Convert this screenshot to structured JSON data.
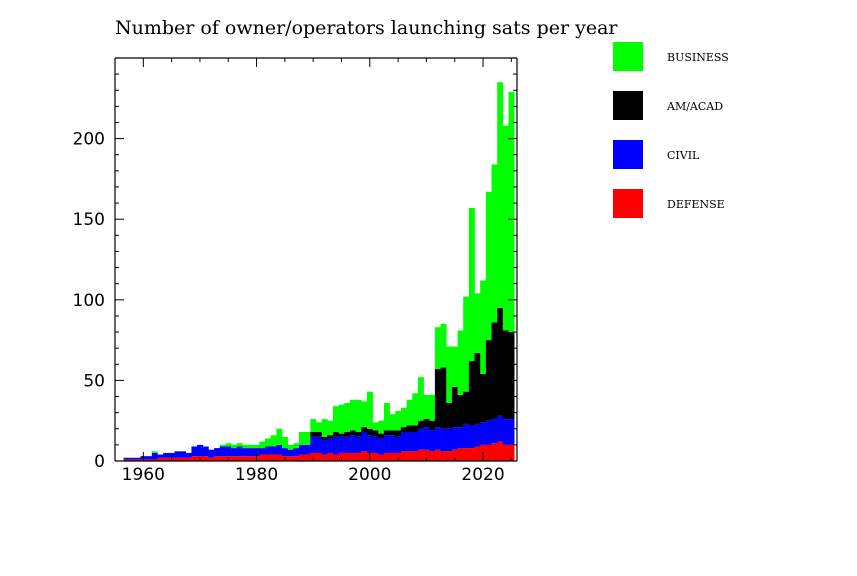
{
  "chart_data": {
    "type": "bar",
    "stacked": true,
    "title": "Number of owner/operators launching sats per year",
    "xlabel": "",
    "ylabel": "",
    "xlim": [
      1955,
      2026
    ],
    "ylim": [
      0,
      250
    ],
    "x_ticks": [
      1960,
      1980,
      2000,
      2020
    ],
    "y_ticks": [
      0,
      50,
      100,
      150,
      200
    ],
    "grid": false,
    "legend_position": "right",
    "x": [
      1957,
      1958,
      1959,
      1960,
      1961,
      1962,
      1963,
      1964,
      1965,
      1966,
      1967,
      1968,
      1969,
      1970,
      1971,
      1972,
      1973,
      1974,
      1975,
      1976,
      1977,
      1978,
      1979,
      1980,
      1981,
      1982,
      1983,
      1984,
      1985,
      1986,
      1987,
      1988,
      1989,
      1990,
      1991,
      1992,
      1993,
      1994,
      1995,
      1996,
      1997,
      1998,
      1999,
      2000,
      2001,
      2002,
      2003,
      2004,
      2005,
      2006,
      2007,
      2008,
      2009,
      2010,
      2011,
      2012,
      2013,
      2014,
      2015,
      2016,
      2017,
      2018,
      2019,
      2020,
      2021,
      2022,
      2023,
      2024,
      2025
    ],
    "series": [
      {
        "name": "DEFENSE",
        "color": "#ff0000",
        "values": [
          1,
          1,
          1,
          1,
          1,
          1,
          2,
          2,
          2,
          2,
          2,
          2,
          3,
          3,
          3,
          2,
          3,
          3,
          3,
          3,
          3,
          3,
          3,
          3,
          4,
          4,
          4,
          4,
          3,
          3,
          3,
          4,
          4,
          5,
          5,
          4,
          5,
          4,
          5,
          5,
          5,
          5,
          6,
          5,
          5,
          4,
          5,
          5,
          5,
          6,
          6,
          6,
          7,
          7,
          6,
          7,
          6,
          6,
          7,
          8,
          8,
          8,
          9,
          10,
          10,
          11,
          12,
          10,
          10
        ]
      },
      {
        "name": "CIVIL",
        "color": "#0000ff",
        "values": [
          1,
          1,
          1,
          2,
          2,
          4,
          2,
          3,
          3,
          4,
          4,
          3,
          6,
          7,
          6,
          5,
          5,
          6,
          6,
          5,
          6,
          5,
          5,
          5,
          4,
          5,
          5,
          6,
          5,
          4,
          5,
          6,
          6,
          10,
          10,
          9,
          9,
          11,
          10,
          10,
          11,
          10,
          12,
          11,
          10,
          10,
          11,
          11,
          10,
          12,
          12,
          12,
          13,
          14,
          13,
          14,
          14,
          14,
          14,
          13,
          15,
          14,
          14,
          14,
          15,
          15,
          16,
          16,
          16
        ]
      },
      {
        "name": "AM/ACAD",
        "color": "#000000",
        "values": [
          0,
          0,
          0,
          0,
          0,
          0,
          0,
          0,
          0,
          0,
          0,
          0,
          0,
          0,
          0,
          0,
          0,
          0,
          0,
          0,
          0,
          0,
          0,
          0,
          0,
          0,
          0,
          0,
          0,
          0,
          0,
          0,
          0,
          3,
          3,
          2,
          2,
          3,
          2,
          3,
          3,
          3,
          3,
          4,
          4,
          3,
          3,
          3,
          4,
          3,
          4,
          4,
          5,
          5,
          6,
          36,
          38,
          16,
          25,
          20,
          20,
          40,
          44,
          30,
          50,
          60,
          67,
          55,
          54
        ]
      },
      {
        "name": "BUSINESS",
        "color": "#00ff00",
        "values": [
          0,
          0,
          0,
          0,
          0,
          1,
          0,
          0,
          0,
          0,
          0,
          0,
          0,
          0,
          0,
          0,
          0,
          1,
          2,
          2,
          2,
          2,
          2,
          2,
          4,
          5,
          7,
          10,
          7,
          3,
          3,
          8,
          8,
          8,
          6,
          11,
          9,
          16,
          18,
          18,
          19,
          20,
          16,
          23,
          5,
          8,
          17,
          10,
          12,
          12,
          16,
          20,
          27,
          15,
          16,
          26,
          27,
          35,
          25,
          40,
          59,
          95,
          37,
          58,
          92,
          98,
          140,
          127,
          149
        ]
      }
    ]
  }
}
